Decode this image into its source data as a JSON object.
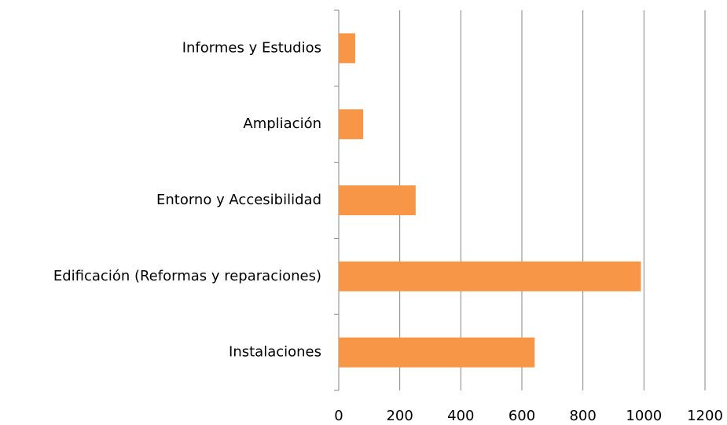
{
  "chart_data": {
    "type": "bar",
    "orientation": "horizontal",
    "categories": [
      "Informes y Estudios",
      "Ampliación",
      "Entorno y Accesibilidad",
      "Edificación (Reformas y reparaciones)",
      "Instalaciones"
    ],
    "values": [
      54,
      80,
      252,
      990,
      642
    ],
    "color": "#f79646",
    "xlim": [
      0,
      1200
    ],
    "xticks": [
      0,
      200,
      400,
      600,
      800,
      1000,
      1200
    ],
    "grid": true
  }
}
